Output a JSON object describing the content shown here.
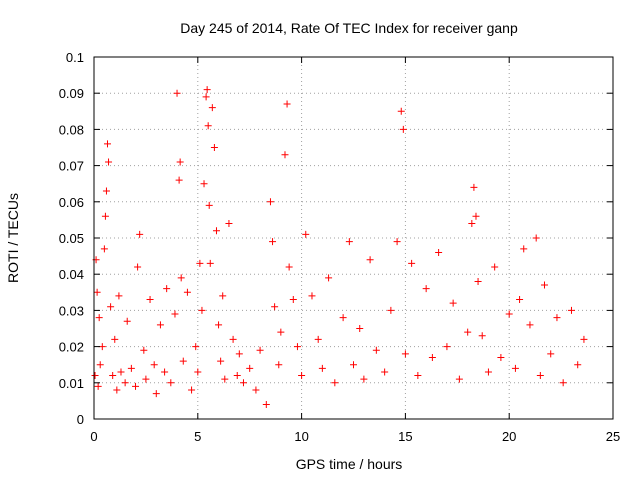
{
  "chart_data": {
    "type": "scatter",
    "title": "Day 245 of 2014, Rate Of TEC Index for receiver ganp",
    "xlabel": "GPS time / hours",
    "ylabel": "ROTI / TECUs",
    "xlim": [
      0,
      25
    ],
    "ylim": [
      0,
      0.1
    ],
    "xticks": [
      0,
      5,
      10,
      15,
      20,
      25
    ],
    "xtick_labels": [
      "0",
      "5",
      "10",
      "15",
      "20",
      "25"
    ],
    "yticks": [
      0,
      0.01,
      0.02,
      0.03,
      0.04,
      0.05,
      0.06,
      0.07,
      0.08,
      0.09,
      0.1
    ],
    "ytick_labels": [
      "0",
      "0.01",
      "0.02",
      "0.03",
      "0.04",
      "0.05",
      "0.06",
      "0.07",
      "0.08",
      "0.09",
      "0.1"
    ],
    "grid": true,
    "marker": "+",
    "color": "#ff0000",
    "series": [
      {
        "name": "ROTI",
        "x": [
          0.05,
          0.1,
          0.15,
          0.2,
          0.25,
          0.3,
          0.4,
          0.5,
          0.55,
          0.6,
          0.65,
          0.7,
          0.8,
          0.9,
          1.0,
          1.1,
          1.2,
          1.3,
          1.5,
          1.6,
          1.8,
          2.0,
          2.1,
          2.2,
          2.4,
          2.5,
          2.7,
          2.9,
          3.0,
          3.2,
          3.4,
          3.5,
          3.7,
          3.9,
          4.0,
          4.1,
          4.15,
          4.2,
          4.3,
          4.5,
          4.7,
          4.9,
          5.0,
          5.1,
          5.2,
          5.3,
          5.4,
          5.45,
          5.5,
          5.55,
          5.6,
          5.7,
          5.8,
          5.9,
          6.0,
          6.1,
          6.2,
          6.3,
          6.5,
          6.7,
          6.9,
          7.0,
          7.2,
          7.5,
          7.8,
          8.0,
          8.3,
          8.5,
          8.6,
          8.7,
          8.9,
          9.0,
          9.2,
          9.3,
          9.4,
          9.6,
          9.8,
          10.0,
          10.2,
          10.5,
          10.8,
          11.0,
          11.3,
          11.6,
          12.0,
          12.3,
          12.5,
          12.8,
          13.0,
          13.3,
          13.6,
          14.0,
          14.3,
          14.6,
          14.8,
          14.9,
          15.0,
          15.3,
          15.6,
          16.0,
          16.3,
          16.6,
          17.0,
          17.3,
          17.6,
          18.0,
          18.2,
          18.3,
          18.4,
          18.5,
          18.7,
          19.0,
          19.3,
          19.6,
          20.0,
          20.3,
          20.5,
          20.7,
          21.0,
          21.3,
          21.5,
          21.7,
          22.0,
          22.3,
          22.6,
          23.0,
          23.3,
          23.6
        ],
        "y": [
          0.012,
          0.044,
          0.035,
          0.009,
          0.028,
          0.015,
          0.02,
          0.047,
          0.056,
          0.063,
          0.076,
          0.071,
          0.031,
          0.012,
          0.022,
          0.008,
          0.034,
          0.013,
          0.01,
          0.027,
          0.014,
          0.009,
          0.042,
          0.051,
          0.019,
          0.011,
          0.033,
          0.015,
          0.007,
          0.026,
          0.013,
          0.036,
          0.01,
          0.029,
          0.09,
          0.066,
          0.071,
          0.039,
          0.016,
          0.035,
          0.008,
          0.02,
          0.013,
          0.043,
          0.03,
          0.065,
          0.089,
          0.091,
          0.081,
          0.059,
          0.043,
          0.086,
          0.075,
          0.052,
          0.026,
          0.016,
          0.034,
          0.011,
          0.054,
          0.022,
          0.012,
          0.018,
          0.01,
          0.014,
          0.008,
          0.019,
          0.004,
          0.06,
          0.049,
          0.031,
          0.015,
          0.024,
          0.073,
          0.087,
          0.042,
          0.033,
          0.02,
          0.012,
          0.051,
          0.034,
          0.022,
          0.014,
          0.039,
          0.01,
          0.028,
          0.049,
          0.015,
          0.025,
          0.011,
          0.044,
          0.019,
          0.013,
          0.03,
          0.049,
          0.085,
          0.08,
          0.018,
          0.043,
          0.012,
          0.036,
          0.017,
          0.046,
          0.02,
          0.032,
          0.011,
          0.024,
          0.054,
          0.064,
          0.056,
          0.038,
          0.023,
          0.013,
          0.042,
          0.017,
          0.029,
          0.014,
          0.033,
          0.047,
          0.026,
          0.05,
          0.012,
          0.037,
          0.018,
          0.028,
          0.01,
          0.03,
          0.015,
          0.022
        ]
      }
    ]
  }
}
